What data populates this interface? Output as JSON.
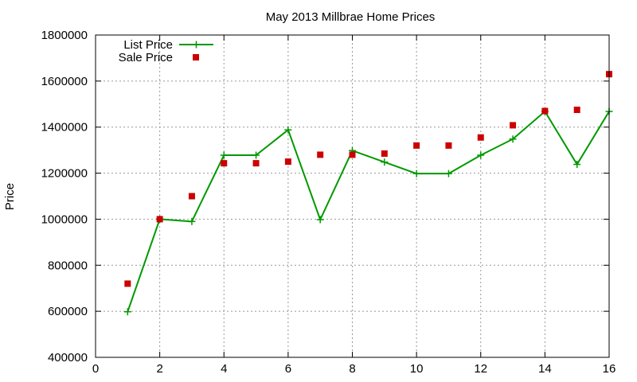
{
  "chart_data": {
    "type": "line",
    "title": "May 2013 Millbrae Home Prices",
    "xlabel": "",
    "ylabel": "Price",
    "xlim": [
      0,
      16
    ],
    "ylim": [
      400000,
      1800000
    ],
    "x_ticks": [
      0,
      2,
      4,
      6,
      8,
      10,
      12,
      14,
      16
    ],
    "y_ticks": [
      400000,
      600000,
      800000,
      1000000,
      1200000,
      1400000,
      1600000,
      1800000
    ],
    "x_tick_labels": [
      "0",
      "2",
      "4",
      "6",
      "8",
      "10",
      "12",
      "14",
      "16"
    ],
    "y_tick_labels": [
      "400000",
      "600000",
      "800000",
      "1000000",
      "1200000",
      "1400000",
      "1600000",
      "1800000"
    ],
    "grid": true,
    "legend_position": "top-left",
    "series": [
      {
        "name": "List Price",
        "style": "line+cross-markers",
        "color": "#009900",
        "x": [
          1,
          2,
          3,
          4,
          5,
          6,
          7,
          8,
          9,
          10,
          11,
          12,
          13,
          14,
          15,
          16
        ],
        "values": [
          598000,
          1000000,
          990000,
          1278000,
          1278000,
          1388000,
          998000,
          1298000,
          1248000,
          1198000,
          1198000,
          1278000,
          1348000,
          1468000,
          1238000,
          1468000
        ]
      },
      {
        "name": "Sale Price",
        "style": "square-markers",
        "color": "#cc0000",
        "x": [
          1,
          2,
          3,
          4,
          5,
          6,
          7,
          8,
          9,
          10,
          11,
          12,
          13,
          14,
          15,
          16
        ],
        "values": [
          720000,
          1000000,
          1100000,
          1243000,
          1243000,
          1250000,
          1280000,
          1280000,
          1285000,
          1320000,
          1320000,
          1355000,
          1408000,
          1470000,
          1475000,
          1630000
        ]
      }
    ]
  }
}
